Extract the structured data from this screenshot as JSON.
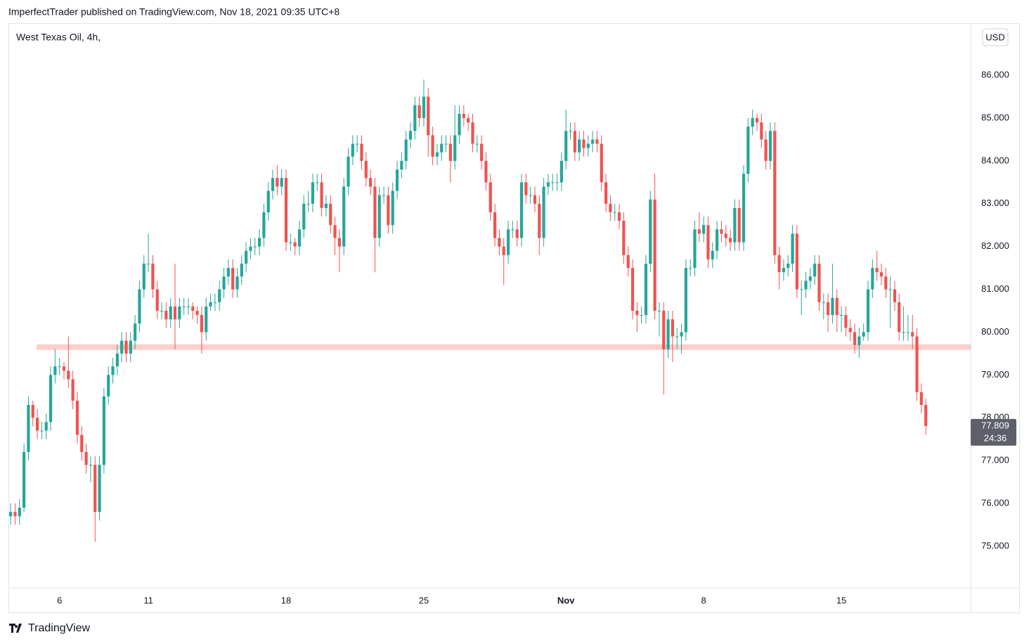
{
  "header": {
    "text": "ImperfectTrader published on TradingView.com, Nov 18, 2021 09:35 UTC+8"
  },
  "footer": {
    "brand": "TradingView"
  },
  "chart_data": {
    "type": "candlestick",
    "title": "West Texas Oil, 4h,",
    "currency": "USD",
    "up_color": "#26a69a",
    "down_color": "#ef5350",
    "grid": false,
    "zone": {
      "value": 79.65,
      "color": "#fbd0cc"
    },
    "countdown": "24:36",
    "xlim": [
      -0.5,
      216.1
    ],
    "xticks": [
      {
        "value": 11,
        "label": "6"
      },
      {
        "value": 31,
        "label": "11"
      },
      {
        "value": 62,
        "label": "18"
      },
      {
        "value": 93,
        "label": "25"
      },
      {
        "value": 125,
        "label": "Nov",
        "bold": true
      },
      {
        "value": 156,
        "label": "8"
      },
      {
        "value": 187,
        "label": "15"
      }
    ],
    "ylim": [
      74.03,
      87.2
    ],
    "yticks": [
      {
        "value": 75,
        "label": "75.000"
      },
      {
        "value": 76,
        "label": "76.000"
      },
      {
        "value": 77,
        "label": "77.000"
      },
      {
        "value": 78,
        "label": "78.000"
      },
      {
        "value": 79,
        "label": "79.000"
      },
      {
        "value": 80,
        "label": "80.000"
      },
      {
        "value": 81,
        "label": "81.000"
      },
      {
        "value": 82,
        "label": "82.000"
      },
      {
        "value": 83,
        "label": "83.000"
      },
      {
        "value": 84,
        "label": "84.000"
      },
      {
        "value": 85,
        "label": "85.000"
      },
      {
        "value": 86,
        "label": "86.000"
      }
    ],
    "open": [
      75.7,
      75.8,
      75.7,
      75.9,
      77.2,
      78.3,
      78.0,
      77.7,
      77.7,
      77.9,
      79.0,
      79.2,
      79.2,
      79.1,
      78.9,
      78.4,
      77.6,
      77.2,
      76.9,
      76.9,
      75.8,
      76.9,
      78.5,
      79.0,
      79.2,
      79.5,
      79.8,
      79.5,
      79.8,
      80.2,
      81.0,
      81.6,
      81.6,
      81.0,
      80.5,
      80.5,
      80.3,
      80.6,
      80.3,
      80.6,
      80.6,
      80.6,
      80.5,
      80.4,
      80.0,
      80.6,
      80.7,
      80.7,
      81.0,
      81.3,
      81.5,
      81.0,
      81.3,
      81.6,
      81.9,
      82.0,
      82.0,
      82.2,
      82.8,
      83.3,
      83.6,
      83.4,
      83.6,
      82.1,
      82.1,
      82.0,
      82.4,
      83.0,
      83.0,
      83.5,
      83.5,
      82.9,
      83.0,
      82.5,
      82.2,
      82.0,
      83.4,
      84.1,
      84.4,
      84.4,
      84.0,
      83.6,
      83.4,
      82.2,
      83.2,
      83.2,
      82.5,
      83.3,
      83.8,
      84.0,
      84.5,
      84.7,
      85.3,
      85.0,
      85.5,
      84.6,
      84.1,
      84.2,
      84.4,
      84.4,
      84.0,
      84.6,
      85.1,
      85.0,
      84.9,
      84.4,
      84.4,
      84.0,
      83.5,
      82.8,
      82.2,
      82.0,
      81.8,
      82.4,
      82.4,
      82.2,
      83.5,
      83.2,
      83.2,
      83.0,
      82.2,
      83.4,
      83.5,
      83.5,
      83.5,
      84.0,
      84.7,
      84.7,
      84.2,
      84.5,
      84.3,
      84.4,
      84.5,
      84.4,
      83.5,
      83.0,
      82.8,
      82.8,
      82.6,
      81.8,
      81.5,
      80.5,
      80.4,
      80.4,
      81.6,
      83.1,
      80.5,
      80.5,
      79.6,
      80.3,
      79.9,
      79.9,
      80.0,
      81.5,
      81.5,
      82.4,
      82.3,
      82.5,
      81.7,
      81.9,
      82.4,
      82.3,
      82.2,
      82.1,
      82.9,
      82.1,
      83.7,
      84.8,
      85.0,
      84.9,
      84.5,
      84.0,
      84.7,
      81.8,
      81.4,
      81.5,
      81.6,
      82.3,
      81.0,
      81.0,
      81.2,
      81.3,
      81.6,
      80.7,
      80.7,
      80.4,
      80.8,
      80.4,
      80.4,
      80.1,
      80.0,
      79.7,
      79.9,
      80.0,
      81.0,
      81.5,
      81.4,
      81.3,
      81.0,
      81.0,
      80.7,
      80.0,
      80.0,
      80.0,
      79.9,
      78.6,
      78.3
    ],
    "high": [
      76.0,
      76.0,
      76.1,
      77.4,
      78.5,
      78.4,
      78.2,
      77.9,
      78.1,
      79.2,
      79.6,
      79.4,
      79.3,
      79.9,
      79.1,
      78.6,
      77.8,
      77.4,
      77.1,
      77.1,
      77.1,
      78.7,
      79.2,
      79.4,
      79.7,
      80.0,
      80.0,
      80.0,
      80.4,
      81.2,
      81.8,
      82.3,
      81.8,
      81.2,
      80.7,
      80.7,
      80.8,
      81.6,
      80.8,
      80.8,
      80.8,
      80.7,
      80.6,
      80.6,
      80.8,
      80.9,
      80.9,
      81.2,
      81.5,
      81.7,
      81.7,
      81.5,
      81.8,
      82.1,
      82.2,
      82.2,
      82.4,
      83.0,
      83.5,
      83.8,
      83.9,
      83.8,
      83.8,
      82.3,
      82.2,
      82.6,
      83.2,
      83.3,
      83.7,
      83.7,
      83.7,
      83.2,
      83.2,
      82.7,
      82.4,
      83.6,
      84.3,
      84.6,
      84.6,
      84.6,
      84.2,
      83.8,
      83.6,
      83.4,
      83.4,
      83.4,
      83.5,
      84.0,
      84.2,
      84.7,
      84.9,
      85.5,
      85.5,
      85.9,
      85.7,
      84.8,
      84.4,
      84.6,
      84.6,
      84.6,
      85.3,
      85.3,
      85.3,
      85.1,
      85.1,
      84.6,
      84.6,
      84.2,
      83.7,
      83.0,
      82.4,
      82.2,
      82.6,
      82.6,
      82.6,
      83.7,
      83.7,
      83.4,
      83.4,
      83.2,
      83.6,
      83.7,
      83.7,
      83.7,
      84.2,
      85.2,
      84.9,
      84.9,
      84.7,
      84.7,
      84.6,
      84.7,
      84.7,
      84.6,
      83.7,
      83.2,
      83.0,
      83.0,
      82.8,
      82.0,
      81.7,
      80.7,
      80.6,
      81.8,
      83.3,
      83.7,
      80.7,
      80.7,
      80.5,
      80.5,
      80.1,
      80.2,
      81.7,
      81.7,
      82.6,
      82.8,
      82.7,
      82.7,
      82.1,
      82.6,
      82.6,
      82.5,
      82.4,
      83.1,
      83.1,
      83.9,
      85.0,
      85.2,
      85.1,
      85.1,
      84.7,
      84.9,
      84.9,
      82.0,
      81.7,
      81.8,
      82.5,
      82.5,
      81.2,
      81.4,
      81.5,
      81.8,
      81.8,
      80.9,
      80.9,
      81.6,
      81.0,
      80.6,
      80.6,
      80.3,
      80.2,
      80.1,
      80.2,
      81.2,
      81.7,
      81.9,
      81.6,
      81.5,
      81.3,
      81.2,
      80.9,
      80.6,
      80.4,
      80.4,
      80.1,
      78.8,
      78.45
    ],
    "low": [
      75.5,
      75.5,
      75.5,
      75.8,
      77.0,
      77.8,
      77.5,
      77.5,
      77.5,
      77.7,
      78.8,
      79.0,
      78.9,
      78.7,
      78.2,
      77.4,
      77.0,
      76.7,
      76.5,
      75.1,
      75.6,
      76.7,
      78.3,
      78.8,
      79.0,
      79.3,
      79.3,
      79.3,
      79.6,
      80.0,
      80.8,
      81.4,
      80.8,
      80.3,
      80.3,
      80.1,
      80.1,
      79.6,
      80.1,
      80.4,
      80.4,
      80.3,
      80.2,
      79.5,
      79.8,
      80.5,
      80.5,
      80.5,
      80.8,
      81.1,
      80.8,
      80.8,
      81.1,
      81.4,
      81.7,
      81.8,
      81.8,
      82.0,
      82.6,
      83.1,
      83.2,
      83.2,
      81.9,
      81.9,
      81.8,
      81.8,
      82.2,
      82.8,
      82.8,
      83.3,
      82.7,
      82.7,
      82.3,
      81.8,
      81.4,
      81.8,
      83.2,
      83.9,
      84.2,
      83.8,
      83.4,
      83.2,
      81.4,
      82.0,
      83.0,
      82.3,
      82.3,
      83.1,
      83.6,
      83.8,
      84.3,
      84.5,
      84.8,
      84.8,
      84.1,
      83.9,
      83.9,
      84.0,
      84.2,
      83.5,
      83.8,
      84.4,
      84.8,
      84.7,
      84.2,
      84.2,
      83.8,
      83.3,
      82.6,
      82.0,
      81.8,
      81.1,
      81.6,
      82.2,
      82.0,
      82.0,
      83.0,
      83.0,
      82.8,
      81.8,
      82.0,
      83.2,
      83.3,
      83.3,
      83.3,
      83.8,
      84.5,
      84.0,
      84.0,
      84.1,
      84.1,
      84.2,
      84.2,
      83.3,
      82.8,
      82.6,
      82.6,
      82.4,
      81.6,
      81.3,
      80.3,
      80.0,
      80.2,
      80.2,
      81.4,
      80.3,
      79.9,
      78.55,
      79.4,
      79.3,
      79.6,
      79.5,
      79.8,
      81.3,
      81.3,
      82.1,
      82.1,
      81.5,
      81.5,
      81.7,
      82.1,
      82.0,
      81.9,
      81.9,
      81.9,
      81.9,
      83.5,
      84.6,
      84.7,
      84.3,
      83.8,
      83.8,
      81.6,
      81.0,
      81.2,
      81.3,
      81.4,
      80.8,
      80.4,
      80.8,
      81.0,
      81.1,
      80.5,
      80.3,
      80.0,
      80.2,
      80.0,
      80.0,
      79.9,
      79.8,
      79.5,
      79.4,
      79.8,
      79.8,
      80.8,
      81.2,
      81.1,
      80.8,
      80.1,
      80.5,
      79.8,
      79.8,
      79.8,
      79.6,
      78.4,
      78.1,
      77.6
    ],
    "close": [
      75.8,
      75.7,
      75.9,
      77.2,
      78.3,
      78.0,
      77.7,
      77.7,
      77.9,
      79.0,
      79.2,
      79.2,
      79.1,
      78.9,
      78.4,
      77.6,
      77.2,
      76.9,
      76.9,
      75.8,
      76.9,
      78.5,
      79.0,
      79.2,
      79.5,
      79.8,
      79.5,
      79.8,
      80.2,
      81.0,
      81.6,
      81.6,
      81.0,
      80.5,
      80.5,
      80.3,
      80.6,
      80.3,
      80.6,
      80.6,
      80.6,
      80.5,
      80.4,
      80.0,
      80.6,
      80.7,
      80.7,
      81.0,
      81.3,
      81.5,
      81.0,
      81.3,
      81.6,
      81.9,
      82.0,
      82.0,
      82.2,
      82.8,
      83.3,
      83.6,
      83.4,
      83.6,
      82.1,
      82.1,
      82.0,
      82.4,
      83.0,
      83.0,
      83.5,
      83.5,
      82.9,
      83.0,
      82.5,
      82.2,
      82.0,
      83.4,
      84.1,
      84.4,
      84.4,
      84.0,
      83.6,
      83.4,
      82.2,
      83.2,
      83.2,
      82.5,
      83.3,
      83.8,
      84.0,
      84.5,
      84.7,
      85.3,
      85.0,
      85.5,
      84.6,
      84.1,
      84.2,
      84.4,
      84.4,
      84.0,
      84.6,
      85.1,
      85.0,
      84.9,
      84.4,
      84.4,
      84.0,
      83.5,
      82.8,
      82.2,
      82.0,
      81.8,
      82.4,
      82.4,
      82.2,
      83.5,
      83.2,
      83.2,
      83.0,
      82.2,
      83.4,
      83.5,
      83.5,
      83.5,
      84.0,
      84.7,
      84.7,
      84.2,
      84.5,
      84.3,
      84.4,
      84.5,
      84.4,
      83.5,
      83.0,
      82.8,
      82.8,
      82.6,
      81.8,
      81.5,
      80.5,
      80.4,
      80.4,
      81.6,
      83.1,
      80.5,
      80.5,
      79.6,
      80.3,
      79.9,
      79.9,
      80.0,
      81.5,
      81.5,
      82.4,
      82.3,
      82.5,
      81.7,
      81.9,
      82.4,
      82.3,
      82.2,
      82.1,
      82.9,
      82.1,
      83.7,
      84.8,
      85.0,
      84.9,
      84.5,
      84.0,
      84.7,
      81.8,
      81.4,
      81.5,
      81.6,
      82.3,
      81.0,
      81.0,
      81.2,
      81.3,
      81.6,
      80.7,
      80.7,
      80.4,
      80.8,
      80.4,
      80.4,
      80.1,
      80.0,
      79.7,
      79.9,
      80.0,
      81.0,
      81.5,
      81.4,
      81.3,
      81.0,
      81.0,
      80.7,
      80.0,
      80.0,
      80.0,
      79.9,
      78.6,
      78.3,
      77.809
    ]
  }
}
